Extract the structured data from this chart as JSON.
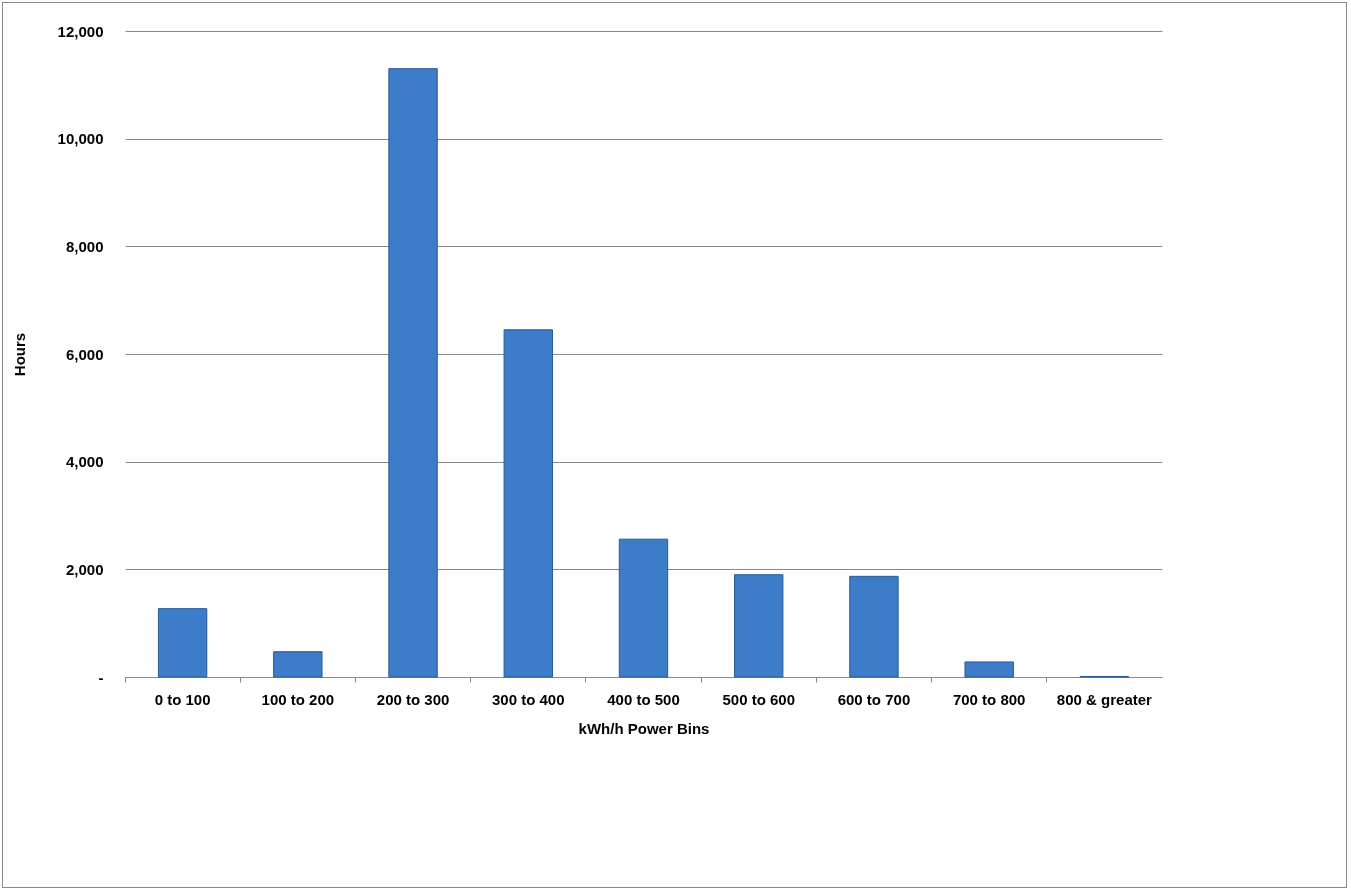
{
  "chart_data": {
    "type": "bar",
    "xlabel": "kWh/h Power Bins",
    "ylabel": "Hours",
    "categories": [
      "0 to 100",
      "100 to 200",
      "200 to 300",
      "300 to 400",
      "400 to 500",
      "500 to 600",
      "600 to 700",
      "700 to 800",
      "800 & greater"
    ],
    "values": [
      1270,
      470,
      11300,
      6450,
      2560,
      1900,
      1870,
      280,
      10
    ],
    "color": "#3d7cc9",
    "ylim": [
      0,
      12000
    ],
    "yticks": [
      {
        "value": 0,
        "label": "-"
      },
      {
        "value": 2000,
        "label": "2,000"
      },
      {
        "value": 4000,
        "label": "4,000"
      },
      {
        "value": 6000,
        "label": "6,000"
      },
      {
        "value": 8000,
        "label": "8,000"
      },
      {
        "value": 10000,
        "label": "10,000"
      },
      {
        "value": 12000,
        "label": "12,000"
      }
    ],
    "grid": "y"
  }
}
